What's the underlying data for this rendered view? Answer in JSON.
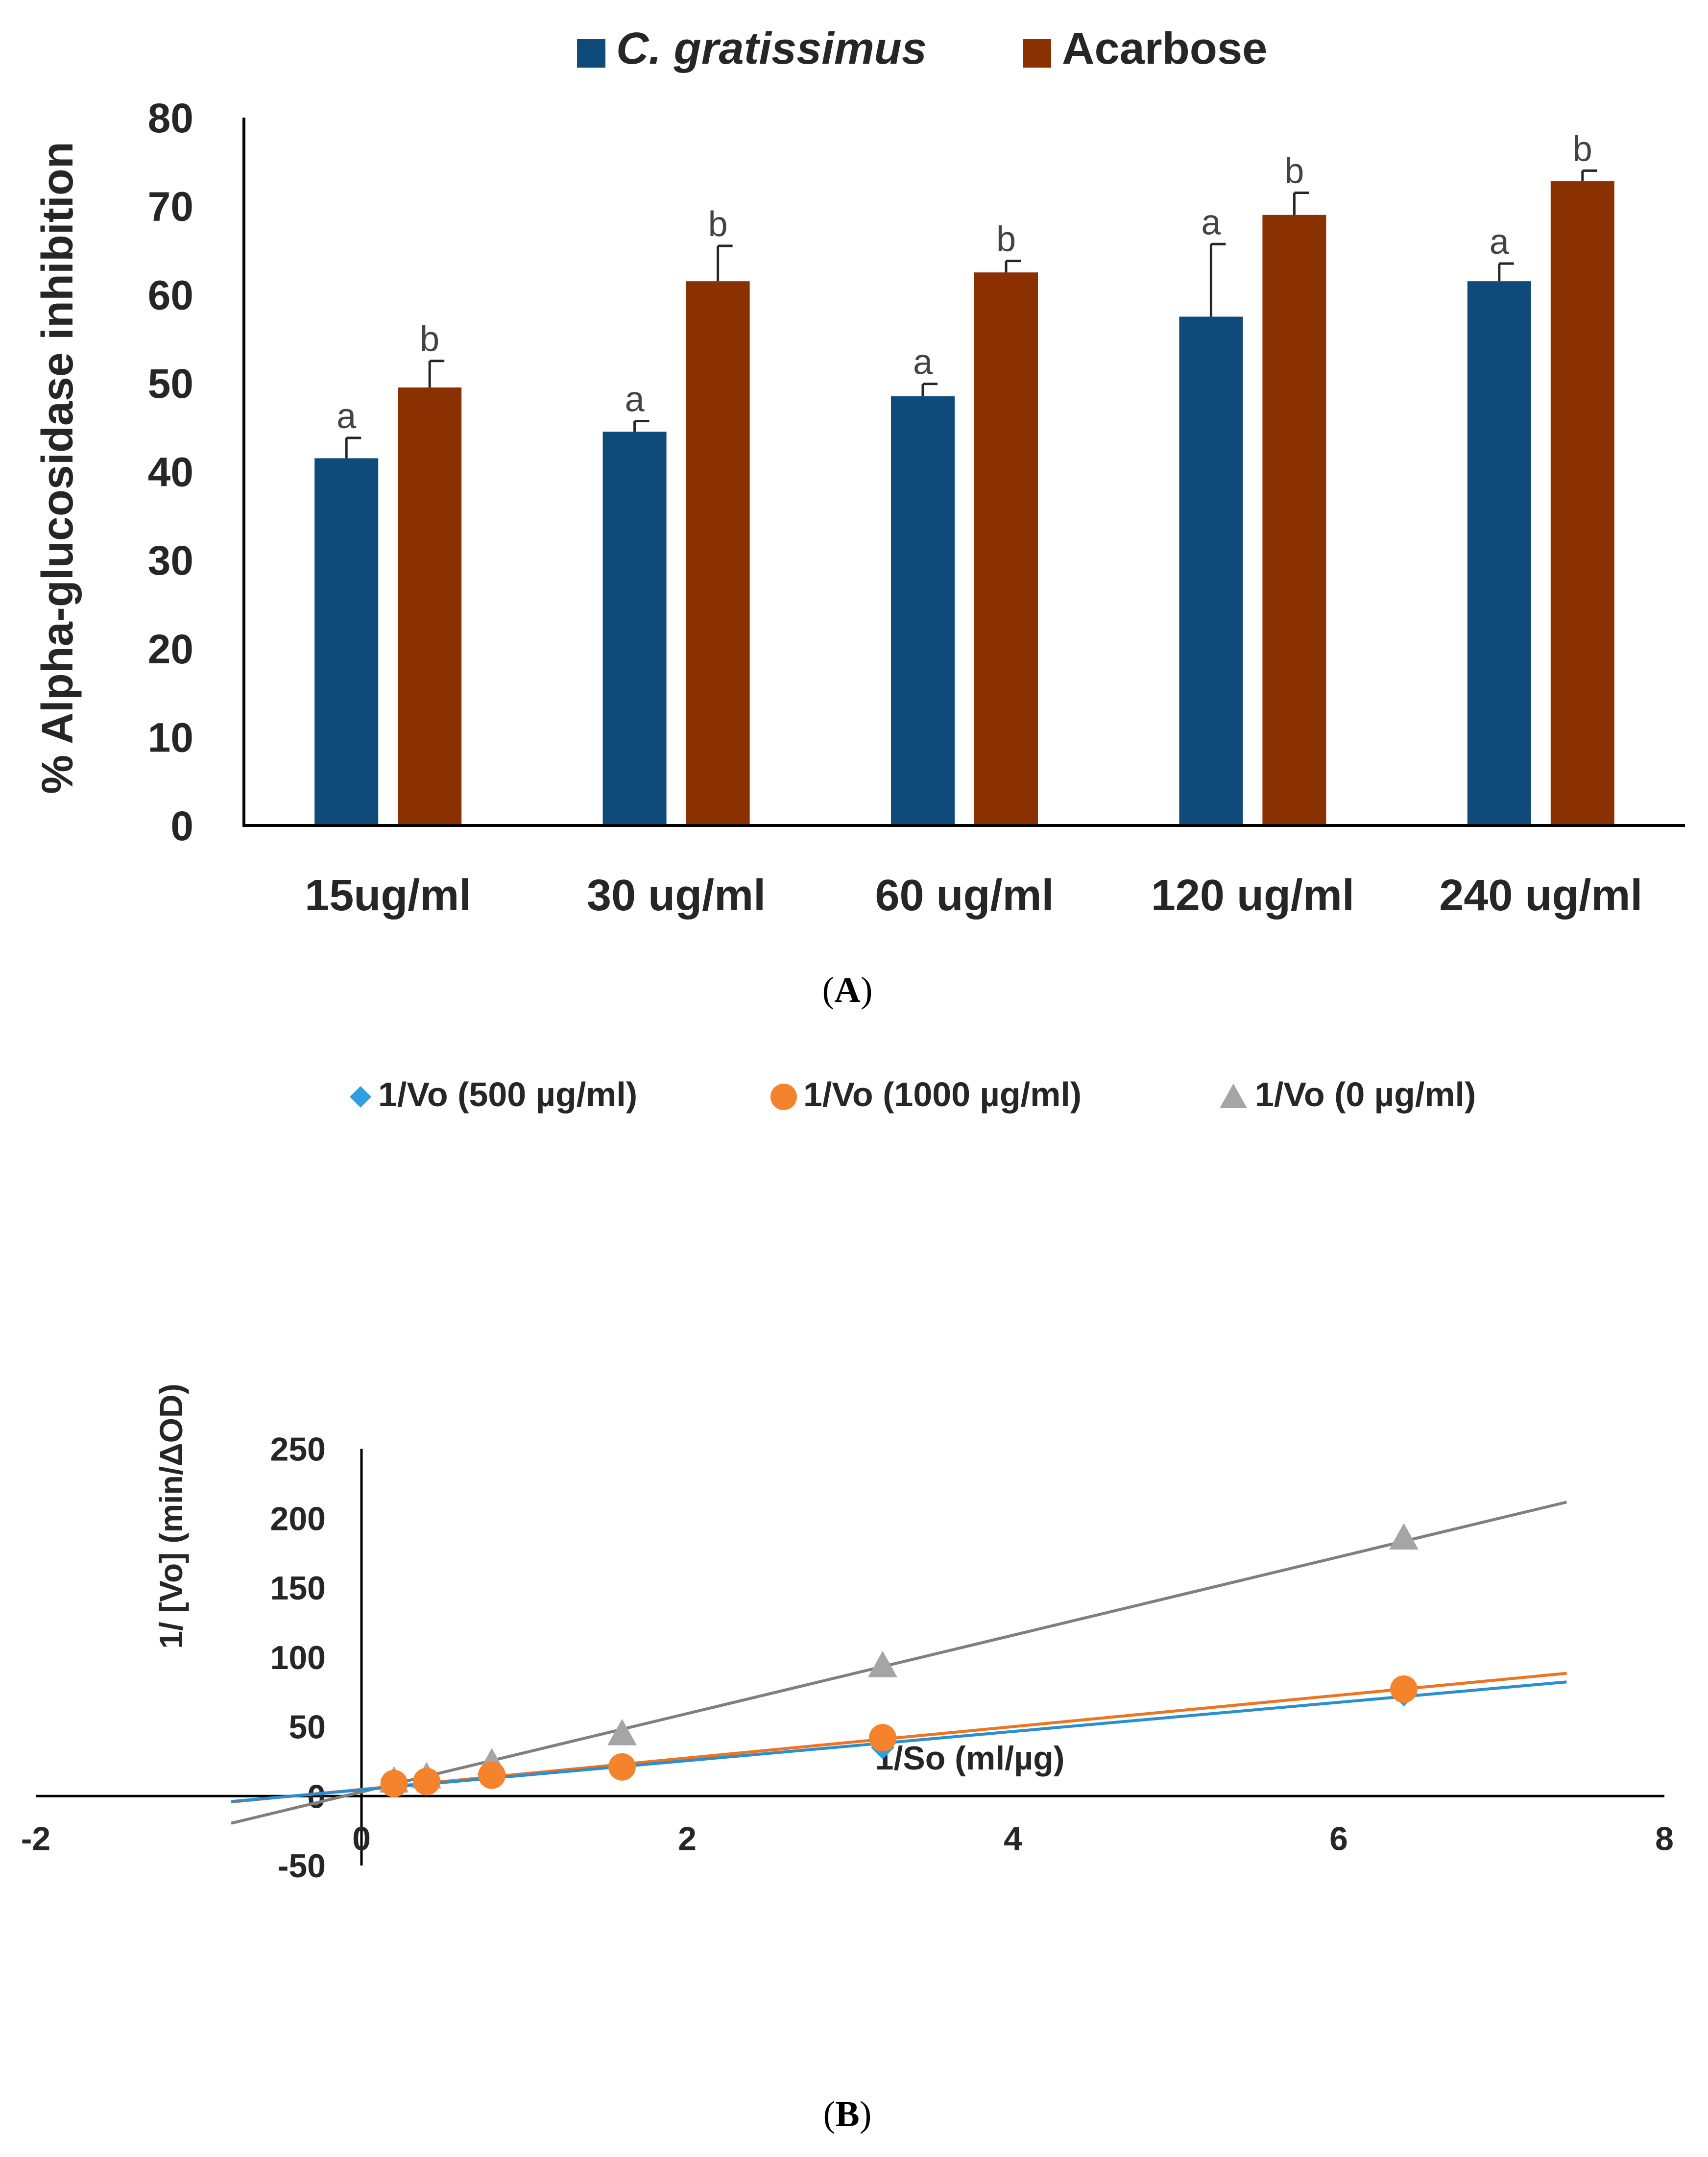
{
  "chart_data": [
    {
      "type": "bar",
      "panel_label": "(A)",
      "panel_letter": "A",
      "title": "",
      "xlabel": "",
      "ylabel": "% Alpha-glucosidase inhibition",
      "ylim": [
        0,
        80
      ],
      "yticks": [
        0,
        10,
        20,
        30,
        40,
        50,
        60,
        70,
        80
      ],
      "grid": false,
      "legend_position": "top-center",
      "categories": [
        "15ug/ml",
        "30 ug/ml",
        "60 ug/ml",
        "120 ug/ml",
        "240 ug/ml"
      ],
      "series": [
        {
          "name": "C. gratissimus",
          "color": "#0e4b7a",
          "values": [
            41.5,
            44.5,
            48.5,
            57.5,
            61.5
          ],
          "errors": [
            2.3,
            1.2,
            1.4,
            8.2,
            2.0
          ],
          "labels": [
            "a",
            "a",
            "a",
            "a",
            "a"
          ]
        },
        {
          "name": "Acarbose",
          "color": "#8b3001",
          "values": [
            49.5,
            61.5,
            62.5,
            69.0,
            72.8
          ],
          "errors": [
            3.0,
            4.0,
            1.3,
            2.5,
            1.2
          ],
          "labels": [
            "b",
            "b",
            "b",
            "b",
            "b"
          ]
        }
      ]
    },
    {
      "type": "scatter",
      "panel_label": "(B)",
      "panel_letter": "B",
      "title": "",
      "xlabel": "1/So (ml/µg)",
      "ylabel": "1/ [Vo] (min/ΔOD)",
      "xlim": [
        -2,
        8
      ],
      "ylim": [
        -50,
        250
      ],
      "xticks": [
        -2,
        0,
        2,
        4,
        6,
        8
      ],
      "yticks": [
        -50,
        0,
        50,
        100,
        150,
        200,
        250
      ],
      "grid": false,
      "legend_position": "top-center",
      "trendline_x_range": [
        -0.8,
        7.4
      ],
      "series": [
        {
          "name": "1/Vo (500 µg/ml)",
          "marker": "diamond",
          "color": "#2e9fe0",
          "line_color": "#2a8fd0",
          "x": [
            0.2,
            0.4,
            0.8,
            1.6,
            3.2,
            6.4
          ],
          "y": [
            9,
            11,
            15,
            20,
            35,
            73
          ],
          "fit": {
            "slope": 10.5,
            "intercept": 4.5
          }
        },
        {
          "name": "1/Vo (1000 µg/ml)",
          "marker": "circle",
          "color": "#f5832b",
          "line_color": "#ee7422",
          "x": [
            0.2,
            0.4,
            0.8,
            1.6,
            3.2,
            6.4
          ],
          "y": [
            9,
            10.5,
            15,
            21,
            42,
            77
          ],
          "fit": {
            "slope": 11.3,
            "intercept": 4.8
          }
        },
        {
          "name": "1/Vo (0 µg/ml)",
          "marker": "triangle",
          "color": "#a5a5a5",
          "line_color": "#7f7f7f",
          "x": [
            0.2,
            0.4,
            0.8,
            1.6,
            3.2,
            6.4
          ],
          "y": [
            11,
            14,
            24,
            45,
            94,
            186
          ],
          "fit": {
            "slope": 28.2,
            "intercept": 3.0
          }
        }
      ]
    }
  ]
}
